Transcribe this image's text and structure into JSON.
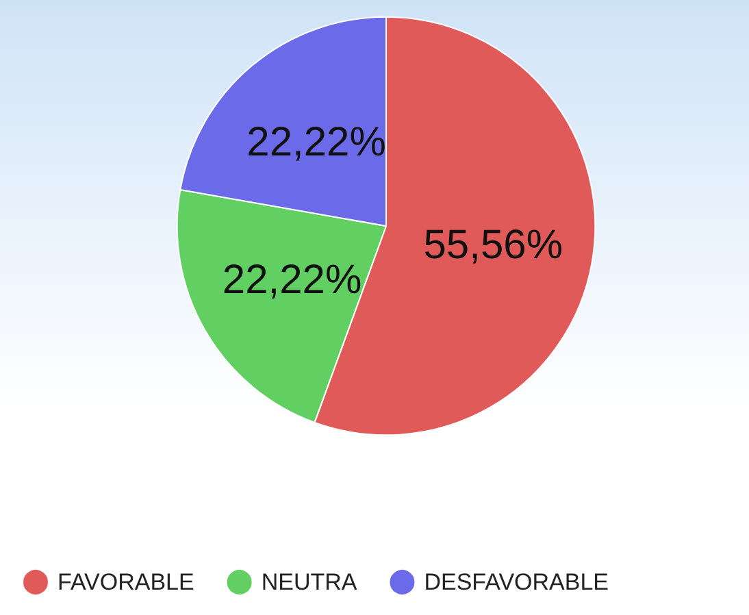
{
  "chart_data": {
    "type": "pie",
    "categories": [
      "FAVORABLE",
      "NEUTRA",
      "DESFAVORABLE"
    ],
    "values": [
      55.56,
      22.22,
      22.22
    ],
    "colors": [
      "#e05a5a",
      "#62cf62",
      "#6b6bea"
    ],
    "value_labels": [
      "55,56%",
      "22,22%",
      "22,22%"
    ],
    "legend": "bottom left"
  }
}
